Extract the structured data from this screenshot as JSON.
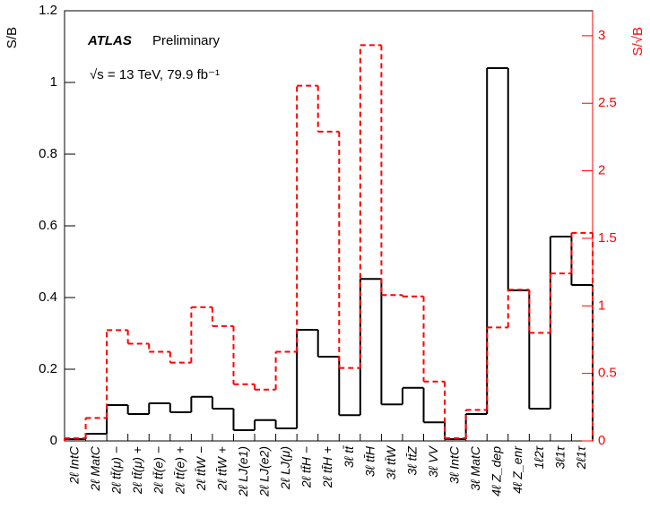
{
  "chart_data": {
    "type": "step",
    "ylabel": "S/B",
    "y2label": "S/√B",
    "annotations": [
      "ATLAS",
      "Preliminary",
      "√s = 13 TeV, 79.9 fb⁻¹"
    ],
    "categories": [
      "2ℓ IntC",
      "2ℓ MatC",
      "2ℓ tt̄(μ) −",
      "2ℓ tt̄(μ) +",
      "2ℓ tt̄(e) −",
      "2ℓ tt̄(e) +",
      "2ℓ tt̄W −",
      "2ℓ tt̄W +",
      "2ℓ LJ(e1)",
      "2ℓ LJ(e2)",
      "2ℓ LJ(μ)",
      "2ℓ tt̄H −",
      "2ℓ tt̄H +",
      "3ℓ tt̄",
      "3ℓ tt̄H",
      "3ℓ tt̄W",
      "3ℓ tt̄Z",
      "3ℓ VV",
      "3ℓ IntC",
      "3ℓ MatC",
      "4ℓ Z_dep",
      "4ℓ Z_enr",
      "1ℓ2τ",
      "3ℓ1τ",
      "2ℓ1τ"
    ],
    "series": [
      {
        "name": "S/B",
        "color": "#000000",
        "dash": false,
        "values": [
          0.005,
          0.02,
          0.1,
          0.075,
          0.105,
          0.08,
          0.123,
          0.09,
          0.03,
          0.058,
          0.035,
          0.31,
          0.235,
          0.072,
          0.452,
          0.102,
          0.148,
          0.052,
          0.005,
          0.075,
          1.04,
          0.42,
          0.09,
          0.57,
          0.435
        ]
      },
      {
        "name": "S/√B",
        "color": "#ff0000",
        "dash": true,
        "axis": "y2",
        "values": [
          0.02,
          0.17,
          0.82,
          0.72,
          0.66,
          0.58,
          0.99,
          0.85,
          0.42,
          0.38,
          0.66,
          2.63,
          2.29,
          0.54,
          2.93,
          1.08,
          1.07,
          0.44,
          0.02,
          0.23,
          0.84,
          1.12,
          0.8,
          1.24,
          1.54
        ]
      }
    ],
    "ylim": [
      0,
      1.2
    ],
    "yticks": [
      0,
      0.2,
      0.4,
      0.6,
      0.8,
      1,
      1.2
    ],
    "y2lim": [
      0,
      3.185
    ],
    "y2ticks": [
      0,
      0.5,
      1,
      1.5,
      2,
      2.5,
      3
    ],
    "y2color": "#ff0000"
  }
}
